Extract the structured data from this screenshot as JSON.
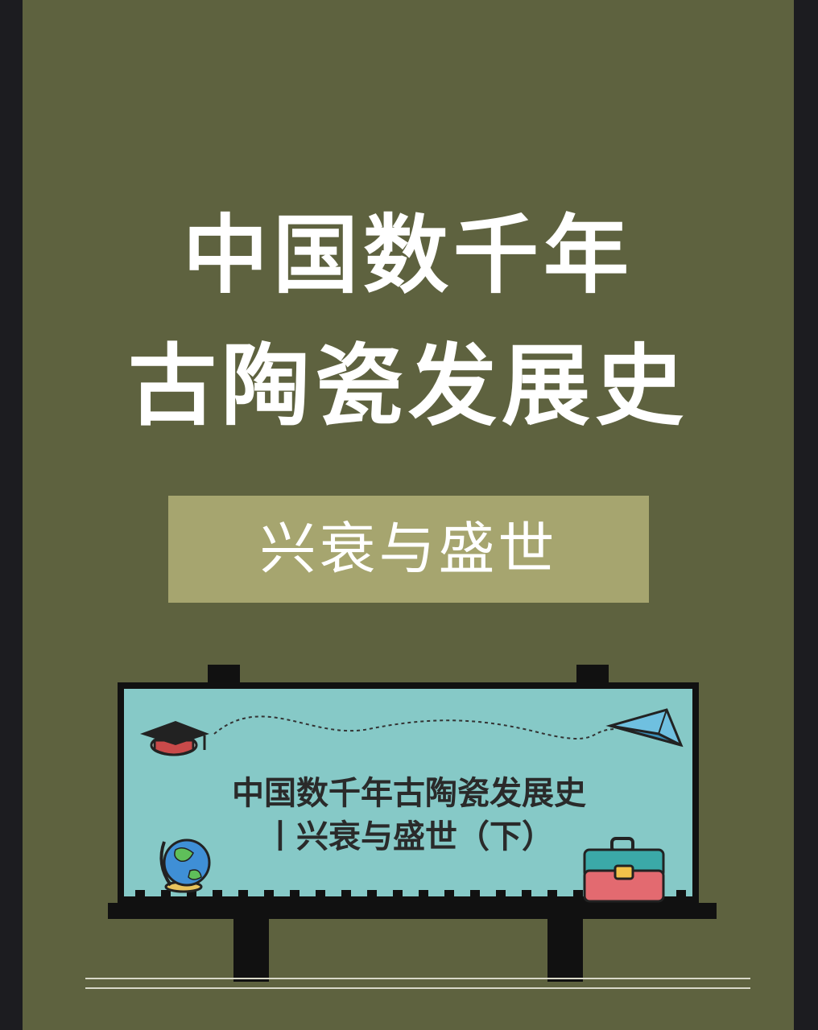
{
  "poster": {
    "title_line1": "中国数千年",
    "title_line2": "古陶瓷发展史",
    "subtitle": "兴衰与盛世"
  },
  "billboard": {
    "line1": "中国数千年古陶瓷发展史",
    "line2": "丨兴衰与盛世（下）",
    "icons": [
      "graduation-cap-icon",
      "paper-plane-icon",
      "globe-icon",
      "briefcase-icon"
    ]
  },
  "colors": {
    "background": "#5e623f",
    "subtitle_box": "#a6a56f",
    "board": "#86c9c7",
    "frame": "#1c1c20"
  }
}
